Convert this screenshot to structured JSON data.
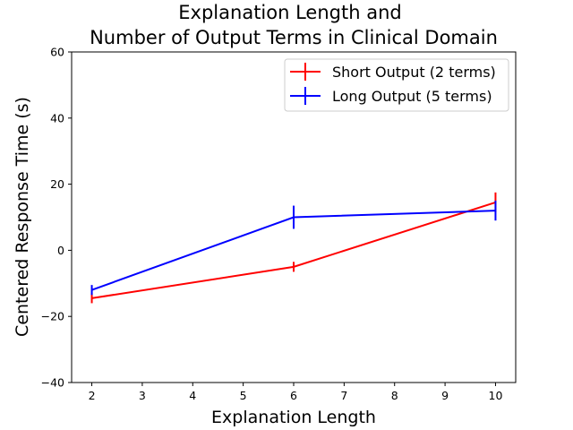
{
  "chart_data": {
    "type": "line",
    "title_line1": "Explanation Length and",
    "title_line2": "Number of Output Terms in Clinical Domain",
    "xlabel": "Explanation Length",
    "ylabel": "Centered Response Time (s)",
    "xlim": [
      1.6,
      10.4
    ],
    "ylim": [
      -40,
      60
    ],
    "xticks": [
      2,
      3,
      4,
      5,
      6,
      7,
      8,
      9,
      10
    ],
    "yticks": [
      -40,
      -20,
      0,
      20,
      40,
      60
    ],
    "grid": false,
    "legend_position": "top-right",
    "series": [
      {
        "name": "Short Output (2 terms)",
        "color": "#ff0000",
        "x": [
          2,
          6,
          10
        ],
        "y": [
          -14.5,
          -5,
          14.5
        ],
        "yerr": [
          1.5,
          1.5,
          3
        ]
      },
      {
        "name": "Long Output (5 terms)",
        "color": "#0000ff",
        "x": [
          2,
          6,
          10
        ],
        "y": [
          -12,
          10,
          12
        ],
        "yerr": [
          1.5,
          3.5,
          3
        ]
      }
    ]
  }
}
